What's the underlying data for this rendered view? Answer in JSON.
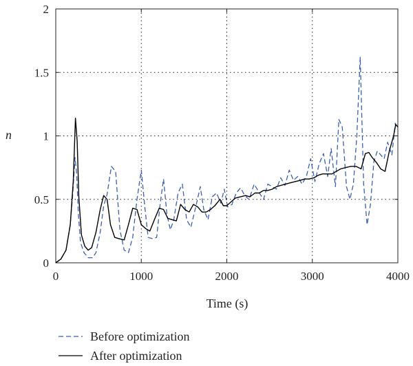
{
  "chart_data": {
    "type": "line",
    "xlabel": "Time (s)",
    "ylabel": "n",
    "xlim": [
      0,
      4000
    ],
    "ylim": [
      0,
      2
    ],
    "xticks": [
      0,
      1000,
      2000,
      3000,
      4000
    ],
    "yticks": [
      0,
      0.5,
      1,
      1.5,
      2
    ],
    "xtick_labels": [
      "0",
      "1000",
      "2000",
      "3000",
      "4000"
    ],
    "ytick_labels": [
      "0",
      "0.5",
      "1",
      "1.5",
      "2"
    ],
    "grid": "dotted, major ticks",
    "legend_position": "bottom-left, below plot",
    "series": [
      {
        "name": "Before optimization",
        "color": "#3a5fb5",
        "style": "dashed",
        "x": [
          0,
          60,
          120,
          170,
          200,
          225,
          245,
          265,
          290,
          330,
          380,
          430,
          470,
          520,
          560,
          600,
          650,
          700,
          750,
          800,
          850,
          900,
          950,
          1000,
          1040,
          1080,
          1130,
          1180,
          1220,
          1260,
          1300,
          1340,
          1380,
          1430,
          1480,
          1530,
          1580,
          1640,
          1690,
          1730,
          1780,
          1830,
          1880,
          1930,
          1970,
          2010,
          2060,
          2110,
          2160,
          2210,
          2260,
          2320,
          2380,
          2430,
          2480,
          2530,
          2580,
          2630,
          2680,
          2730,
          2780,
          2830,
          2880,
          2930,
          2980,
          3030,
          3080,
          3130,
          3180,
          3220,
          3270,
          3310,
          3350,
          3400,
          3440,
          3480,
          3520,
          3560,
          3600,
          3640,
          3680,
          3720,
          3760,
          3800,
          3840,
          3880,
          3930,
          3970,
          4000
        ],
        "y": [
          0,
          0.03,
          0.1,
          0.3,
          0.55,
          0.83,
          0.7,
          0.38,
          0.16,
          0.08,
          0.04,
          0.04,
          0.08,
          0.24,
          0.45,
          0.54,
          0.76,
          0.72,
          0.26,
          0.1,
          0.08,
          0.2,
          0.5,
          0.73,
          0.45,
          0.2,
          0.19,
          0.2,
          0.46,
          0.66,
          0.38,
          0.26,
          0.34,
          0.55,
          0.62,
          0.34,
          0.28,
          0.45,
          0.6,
          0.42,
          0.34,
          0.52,
          0.55,
          0.47,
          0.58,
          0.44,
          0.46,
          0.55,
          0.59,
          0.53,
          0.5,
          0.62,
          0.55,
          0.5,
          0.62,
          0.6,
          0.58,
          0.67,
          0.61,
          0.73,
          0.65,
          0.68,
          0.62,
          0.68,
          0.82,
          0.64,
          0.78,
          0.86,
          0.68,
          0.9,
          0.6,
          1.13,
          1.07,
          0.6,
          0.5,
          0.62,
          1.0,
          1.62,
          0.62,
          0.3,
          0.46,
          0.8,
          0.88,
          0.85,
          0.82,
          0.95,
          0.85,
          1.1,
          1.05
        ]
      },
      {
        "name": "After optimization",
        "color": "#000000",
        "style": "solid",
        "x": [
          0,
          60,
          120,
          170,
          205,
          230,
          250,
          270,
          300,
          340,
          380,
          420,
          470,
          520,
          560,
          600,
          640,
          690,
          740,
          800,
          850,
          900,
          950,
          1000,
          1050,
          1100,
          1160,
          1210,
          1260,
          1310,
          1360,
          1410,
          1460,
          1510,
          1560,
          1610,
          1660,
          1710,
          1760,
          1810,
          1860,
          1920,
          1960,
          2000,
          2050,
          2100,
          2160,
          2220,
          2270,
          2330,
          2380,
          2430,
          2480,
          2530,
          2580,
          2630,
          2690,
          2740,
          2800,
          2860,
          2910,
          2960,
          3020,
          3070,
          3120,
          3170,
          3230,
          3280,
          3330,
          3390,
          3450,
          3510,
          3570,
          3620,
          3660,
          3700,
          3750,
          3800,
          3850,
          3900,
          3950,
          3975,
          4000
        ],
        "y": [
          0,
          0.03,
          0.1,
          0.3,
          0.65,
          1.14,
          0.96,
          0.52,
          0.22,
          0.13,
          0.1,
          0.12,
          0.24,
          0.42,
          0.53,
          0.5,
          0.3,
          0.2,
          0.19,
          0.18,
          0.3,
          0.43,
          0.42,
          0.3,
          0.27,
          0.25,
          0.35,
          0.43,
          0.42,
          0.35,
          0.34,
          0.33,
          0.46,
          0.42,
          0.4,
          0.46,
          0.44,
          0.4,
          0.4,
          0.42,
          0.45,
          0.5,
          0.45,
          0.45,
          0.48,
          0.51,
          0.52,
          0.53,
          0.52,
          0.55,
          0.55,
          0.57,
          0.57,
          0.58,
          0.6,
          0.61,
          0.62,
          0.63,
          0.64,
          0.65,
          0.66,
          0.66,
          0.67,
          0.69,
          0.7,
          0.7,
          0.7,
          0.72,
          0.74,
          0.75,
          0.76,
          0.76,
          0.74,
          0.86,
          0.87,
          0.83,
          0.79,
          0.74,
          0.72,
          0.88,
          1.0,
          1.09,
          1.07
        ]
      }
    ]
  }
}
